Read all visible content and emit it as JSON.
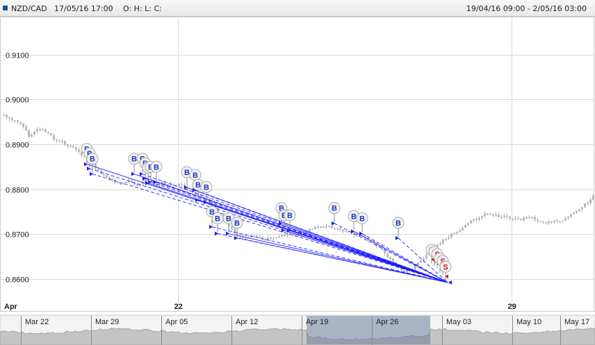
{
  "header": {
    "symbol": "NZD/CAD",
    "datetime": "17/05/16 17:00",
    "ohlc_label": "O: H: L: C:",
    "range": "19/04/16 09:00 - 2/05/16 03:00"
  },
  "colors": {
    "candle": "#b8b8b8",
    "buy": "#1a1aff",
    "sell": "#dd1111",
    "grid": "#d7d7d7",
    "navigator_fill": "#c4c4c4",
    "navigator_selected": "#6d7f9e"
  },
  "chart_data": {
    "type": "candlestick",
    "title": "",
    "xlabel": "",
    "ylabel": "",
    "ylim": [
      0.855,
      0.9185
    ],
    "y_ticks": [
      "0.9100",
      "0.9000",
      "0.8900",
      "0.8800",
      "0.8700",
      "0.8600"
    ],
    "x_ticks": [
      "Apr",
      "22",
      "29"
    ],
    "grid": true,
    "price_path": [
      [
        0,
        0.8965
      ],
      [
        3,
        0.8955
      ],
      [
        6,
        0.8945
      ],
      [
        9,
        0.892
      ],
      [
        12,
        0.8935
      ],
      [
        15,
        0.8928
      ],
      [
        18,
        0.8912
      ],
      [
        21,
        0.8905
      ],
      [
        24,
        0.8895
      ],
      [
        27,
        0.8882
      ],
      [
        30,
        0.8868
      ],
      [
        33,
        0.8848
      ],
      [
        36,
        0.883
      ],
      [
        39,
        0.8822
      ],
      [
        42,
        0.8812
      ],
      [
        45,
        0.882
      ],
      [
        48,
        0.8808
      ],
      [
        51,
        0.8822
      ],
      [
        54,
        0.881
      ],
      [
        57,
        0.8815
      ],
      [
        60,
        0.8808
      ],
      [
        63,
        0.8812
      ],
      [
        66,
        0.88
      ],
      [
        69,
        0.879
      ],
      [
        72,
        0.8782
      ],
      [
        75,
        0.8765
      ],
      [
        78,
        0.8742
      ],
      [
        81,
        0.8715
      ],
      [
        84,
        0.87
      ],
      [
        87,
        0.869
      ],
      [
        90,
        0.8695
      ],
      [
        93,
        0.8688
      ],
      [
        96,
        0.869
      ],
      [
        99,
        0.8695
      ],
      [
        102,
        0.87
      ],
      [
        105,
        0.8698
      ],
      [
        108,
        0.8705
      ],
      [
        111,
        0.8712
      ],
      [
        114,
        0.8718
      ],
      [
        117,
        0.8715
      ],
      [
        120,
        0.8712
      ],
      [
        123,
        0.8705
      ],
      [
        126,
        0.87
      ],
      [
        129,
        0.8695
      ],
      [
        132,
        0.8685
      ],
      [
        135,
        0.867
      ],
      [
        138,
        0.865
      ],
      [
        141,
        0.863
      ],
      [
        144,
        0.8618
      ],
      [
        147,
        0.8622
      ],
      [
        150,
        0.864
      ],
      [
        153,
        0.866
      ],
      [
        156,
        0.8675
      ],
      [
        159,
        0.869
      ],
      [
        162,
        0.8702
      ],
      [
        165,
        0.8715
      ],
      [
        168,
        0.8728
      ],
      [
        171,
        0.8738
      ],
      [
        174,
        0.8745
      ],
      [
        177,
        0.8742
      ],
      [
        180,
        0.8738
      ],
      [
        183,
        0.8735
      ],
      [
        186,
        0.8732
      ],
      [
        189,
        0.8738
      ],
      [
        192,
        0.873
      ],
      [
        195,
        0.8725
      ],
      [
        198,
        0.8728
      ],
      [
        201,
        0.8732
      ],
      [
        204,
        0.8745
      ],
      [
        207,
        0.8758
      ],
      [
        210,
        0.877
      ],
      [
        212,
        0.8788
      ]
    ],
    "buy_markers": [
      [
        30,
        0.889
      ],
      [
        31,
        0.888
      ],
      [
        32,
        0.8868
      ],
      [
        47,
        0.8868
      ],
      [
        50,
        0.8868
      ],
      [
        51,
        0.8858
      ],
      [
        52,
        0.8848
      ],
      [
        53,
        0.885
      ],
      [
        55,
        0.885
      ],
      [
        66,
        0.8838
      ],
      [
        69,
        0.8832
      ],
      [
        70,
        0.881
      ],
      [
        73,
        0.8805
      ],
      [
        75,
        0.875
      ],
      [
        77,
        0.8735
      ],
      [
        81,
        0.8735
      ],
      [
        84,
        0.8725
      ],
      [
        100,
        0.8758
      ],
      [
        101,
        0.8742
      ],
      [
        103,
        0.8742
      ],
      [
        119,
        0.8758
      ],
      [
        126,
        0.874
      ],
      [
        129,
        0.8735
      ],
      [
        142,
        0.8725
      ]
    ],
    "sell_markers": [
      [
        154,
        0.8665
      ],
      [
        155,
        0.866
      ],
      [
        156,
        0.8655
      ],
      [
        157,
        0.8645
      ],
      [
        158,
        0.864
      ],
      [
        159,
        0.8627
      ]
    ],
    "trade_target": [
      160,
      0.8592
    ],
    "navigator": {
      "labels": [
        "Mar 22",
        "Mar 29",
        "Apr 05",
        "Apr 12",
        "Apr 19",
        "Apr 26",
        "May 03",
        "May 10",
        "May 17"
      ]
    }
  }
}
